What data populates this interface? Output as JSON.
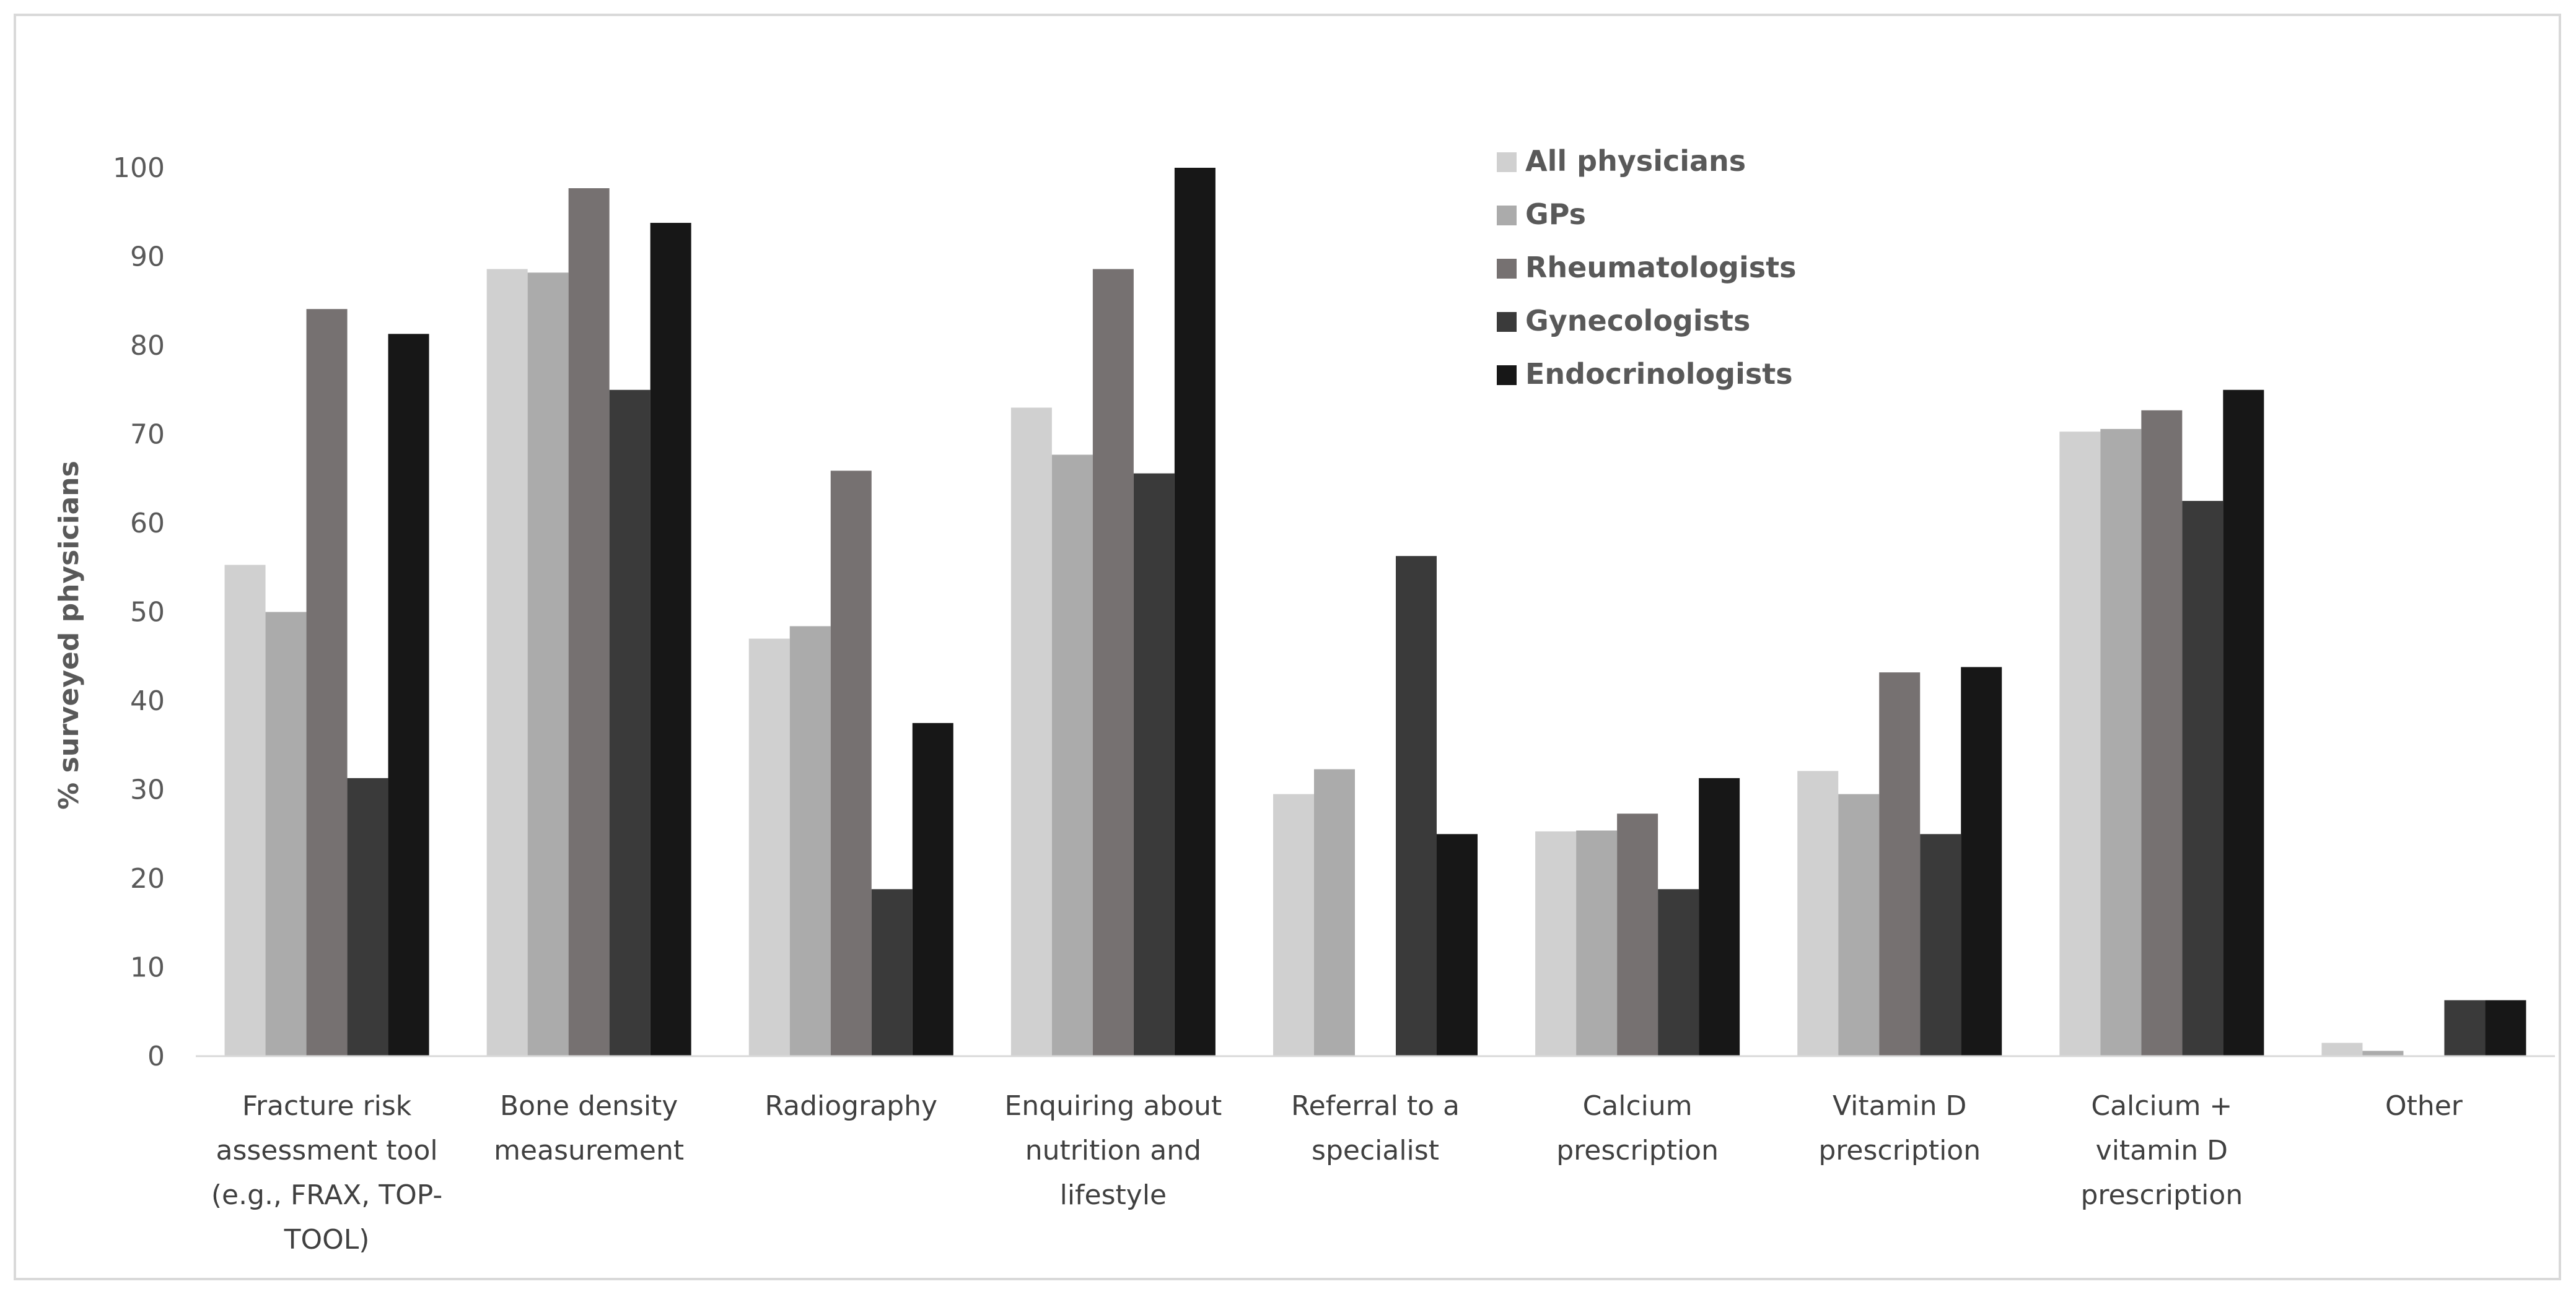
{
  "chart_data": {
    "type": "bar",
    "title": "",
    "xlabel": "",
    "ylabel": "% surveyed physicians",
    "ylim": [
      0,
      100
    ],
    "yticks": [
      0,
      10,
      20,
      30,
      40,
      50,
      60,
      70,
      80,
      90,
      100
    ],
    "grid": false,
    "legend_position": "top-right",
    "categories": [
      [
        "Fracture risk",
        "assessment tool",
        "(e.g., FRAX, TOP-",
        "TOOL)"
      ],
      [
        "Bone density",
        "measurement"
      ],
      [
        "Radiography"
      ],
      [
        "Enquiring about",
        "nutrition and",
        "lifestyle"
      ],
      [
        "Referral to a",
        "specialist"
      ],
      [
        "Calcium",
        "prescription"
      ],
      [
        "Vitamin D",
        "prescription"
      ],
      [
        "Calcium +",
        "vitamin D",
        "prescription"
      ],
      [
        "Other"
      ]
    ],
    "series": [
      {
        "name": "All physicians",
        "color": "#d0d0d0",
        "values": [
          55.3,
          88.6,
          47.0,
          73.0,
          29.5,
          25.3,
          32.1,
          70.3,
          1.5
        ]
      },
      {
        "name": "GPs",
        "color": "#ababab",
        "values": [
          50.0,
          88.2,
          48.4,
          67.7,
          32.3,
          25.4,
          29.5,
          70.6,
          0.6
        ]
      },
      {
        "name": "Rheumatologists",
        "color": "#767171",
        "values": [
          84.1,
          97.7,
          65.9,
          88.6,
          0,
          27.3,
          43.2,
          72.7,
          0
        ]
      },
      {
        "name": "Gynecologists",
        "color": "#3a3a3a",
        "values": [
          31.3,
          75.0,
          18.8,
          65.6,
          56.3,
          18.8,
          25.0,
          62.5,
          6.3
        ]
      },
      {
        "name": "Endocrinologists",
        "color": "#171717",
        "values": [
          81.3,
          93.8,
          37.5,
          100.0,
          25.0,
          31.3,
          43.8,
          75.0,
          6.3
        ]
      }
    ]
  }
}
